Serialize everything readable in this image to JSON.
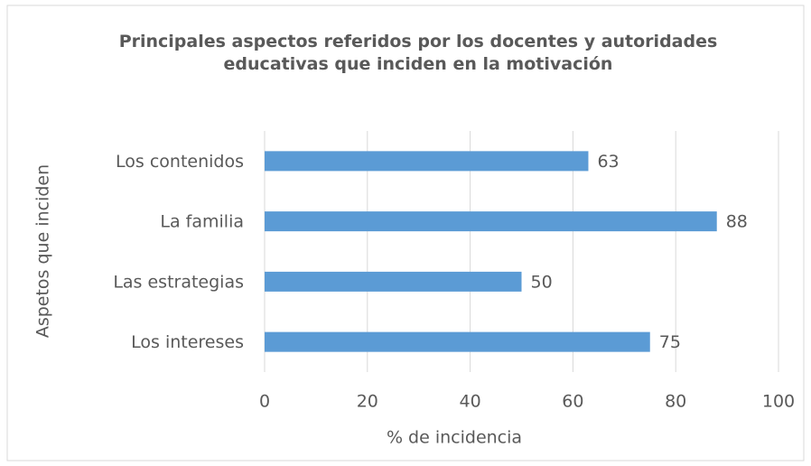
{
  "chart_data": {
    "type": "bar",
    "orientation": "horizontal",
    "title": "Principales aspectos referidos por los docentes y autoridades educativas que inciden en la motivación",
    "xlabel": "% de incidencia",
    "ylabel": "Aspetos que inciden",
    "categories": [
      "Los contenidos",
      "La familia",
      "Las estrategias",
      "Los intereses"
    ],
    "values": [
      63,
      88,
      50,
      75
    ],
    "color": "#5b9bd5",
    "xlim": [
      0,
      100
    ],
    "xticks": [
      0,
      20,
      40,
      60,
      80,
      100
    ],
    "grid": true
  }
}
